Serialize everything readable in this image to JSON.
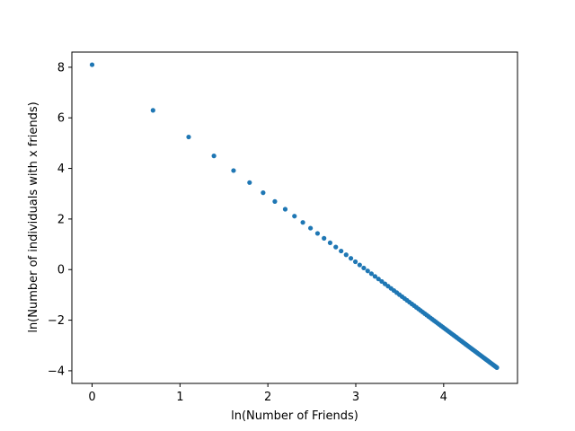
{
  "chart_data": {
    "type": "scatter",
    "title": "",
    "xlabel": "ln(Number of Friends)",
    "ylabel": "ln(Number of individuals with x friends)",
    "xlim": [
      -0.23,
      4.84
    ],
    "ylim": [
      -4.5,
      8.6
    ],
    "xticks": [
      0,
      1,
      2,
      3,
      4
    ],
    "yticks": [
      -4,
      -2,
      0,
      2,
      4,
      6,
      8
    ],
    "grid": false,
    "marker_color": "#1f77b4",
    "series": [
      {
        "x_start": 1,
        "x_end": 100,
        "x_transform": "ln",
        "intercept": 8.1,
        "slope": -2.6
      }
    ]
  }
}
